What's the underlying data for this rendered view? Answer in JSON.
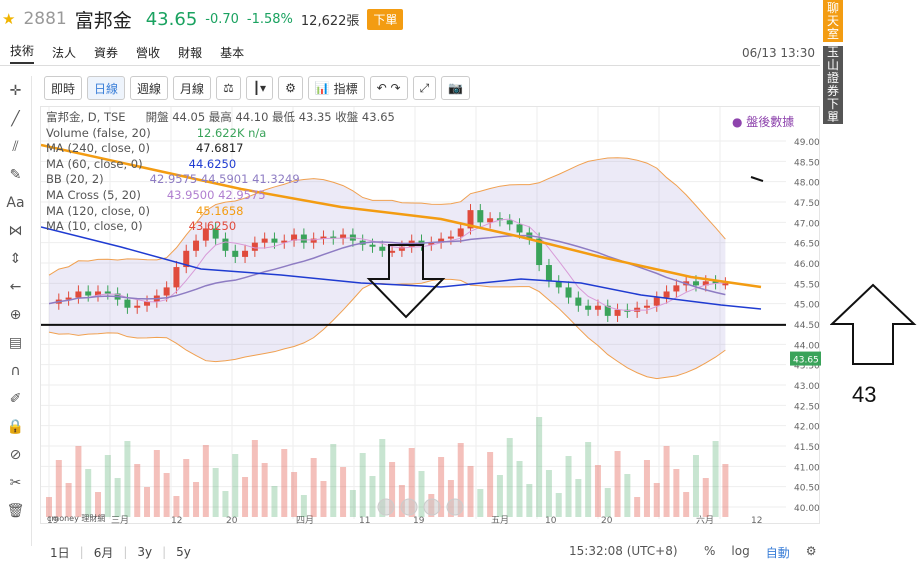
{
  "header": {
    "code": "2881",
    "name": "富邦金",
    "price": "43.65",
    "change": "-0.70",
    "change_pct": "-1.58%",
    "volume": "12,622張",
    "order_label": "下單"
  },
  "tabs": [
    "技術",
    "法人",
    "資券",
    "營收",
    "財報",
    "基本"
  ],
  "datetime": "06/13 13:30",
  "toolbar": {
    "intraday": "即時",
    "daily": "日線",
    "weekly": "週線",
    "monthly": "月線",
    "indicators": "指標"
  },
  "legend": {
    "symbol": "富邦金, D, TSE",
    "ohlc": "開盤 44.05 最高 44.10 最低 43.35 收盤 43.65",
    "volume_label": "Volume (false, 20)",
    "volume_val": "12.622K n/a",
    "ma240_label": "MA (240, close, 0)",
    "ma240_val": "47.6817",
    "ma60_label": "MA (60, close, 0)",
    "ma60_val": "44.6250",
    "bb_label": "BB (20, 2)",
    "bb_val": "42.9575 44.5901 41.3249",
    "macross_label": "MA Cross (5, 20)",
    "macross_val": "43.9500 42.9575",
    "ma120_label": "MA (120, close, 0)",
    "ma120_val": "45.1658",
    "ma10_label": "MA (10, close, 0)",
    "ma10_val": "43.6250"
  },
  "after_hours": "盤後數據",
  "right_sidebar": {
    "chat": "聊天室",
    "esun": "玉山證券下單"
  },
  "price_axis": [
    "49.00",
    "48.50",
    "48.00",
    "47.50",
    "47.00",
    "46.50",
    "46.00",
    "45.50",
    "45.00",
    "44.50",
    "44.00",
    "43.50",
    "43.00",
    "42.50",
    "42.00",
    "41.50",
    "41.00",
    "40.50",
    "40.00"
  ],
  "current_price_tag": "43.65",
  "date_axis": [
    "19",
    "三月",
    "12",
    "20",
    "四月",
    "11",
    "19",
    "五月",
    "10",
    "20",
    "六月",
    "12"
  ],
  "range_buttons": [
    "1日",
    "6月",
    "3y",
    "5y"
  ],
  "clock": "15:32:08 (UTC+8)",
  "scale_modes": [
    "%",
    "log",
    "自動"
  ],
  "annotation": "43",
  "watermark": "cmoney 理財網",
  "colors": {
    "up": "#e04b3c",
    "down": "#3aa35a",
    "ma60": "#1f3bd1",
    "ma120": "#f39c12",
    "bb": "#8e7cc3",
    "ma_cross": "#b07fd0",
    "accent": "#f39c12"
  }
}
